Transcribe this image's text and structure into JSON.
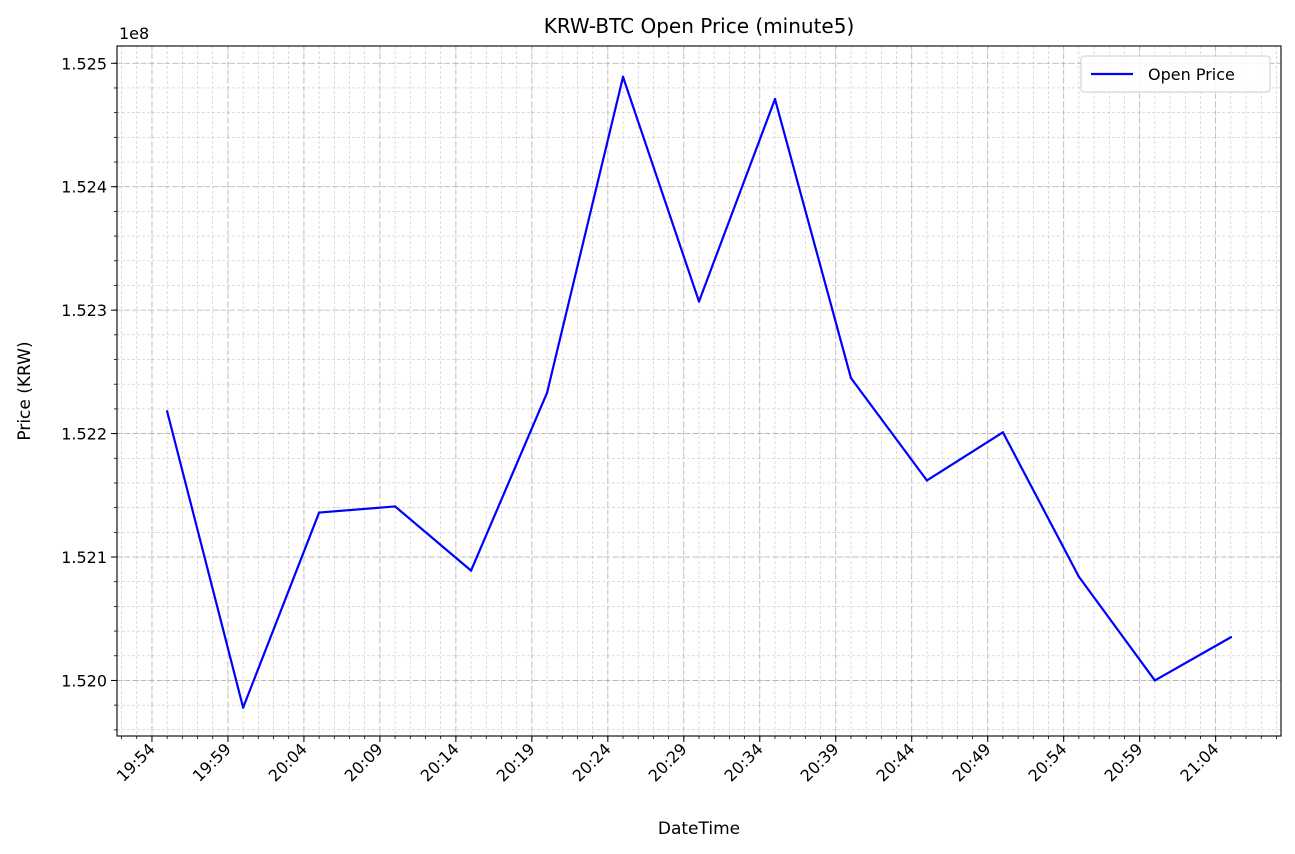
{
  "chart_data": {
    "type": "line",
    "title": "KRW-BTC Open Price (minute5)",
    "xlabel": "DateTime",
    "ylabel": "Price (KRW)",
    "y_offset_label": "1e8",
    "x": [
      "19:55",
      "20:00",
      "20:05",
      "20:10",
      "20:15",
      "20:20",
      "20:25",
      "20:30",
      "20:35",
      "20:40",
      "20:45",
      "20:50",
      "20:55",
      "21:00",
      "21:05"
    ],
    "x_minutes": [
      1195,
      1200,
      1205,
      1210,
      1215,
      1220,
      1225,
      1230,
      1235,
      1240,
      1245,
      1250,
      1255,
      1260,
      1265
    ],
    "xlim_minutes": [
      1191.7,
      1268.3
    ],
    "x_ticks": [
      {
        "minutes": 1194,
        "label": "19:54"
      },
      {
        "minutes": 1199,
        "label": "19:59"
      },
      {
        "minutes": 1204,
        "label": "20:04"
      },
      {
        "minutes": 1209,
        "label": "20:09"
      },
      {
        "minutes": 1214,
        "label": "20:14"
      },
      {
        "minutes": 1219,
        "label": "20:19"
      },
      {
        "minutes": 1224,
        "label": "20:24"
      },
      {
        "minutes": 1229,
        "label": "20:29"
      },
      {
        "minutes": 1234,
        "label": "20:34"
      },
      {
        "minutes": 1239,
        "label": "20:39"
      },
      {
        "minutes": 1244,
        "label": "20:44"
      },
      {
        "minutes": 1249,
        "label": "20:49"
      },
      {
        "minutes": 1254,
        "label": "20:54"
      },
      {
        "minutes": 1259,
        "label": "20:59"
      },
      {
        "minutes": 1264,
        "label": "21:04"
      }
    ],
    "x_minor_step_minutes": 1,
    "ylim": [
      1.51955,
      1.52514
    ],
    "y_ticks": [
      {
        "value": 1.52,
        "label": "1.520"
      },
      {
        "value": 1.521,
        "label": "1.521"
      },
      {
        "value": 1.522,
        "label": "1.522"
      },
      {
        "value": 1.523,
        "label": "1.523"
      },
      {
        "value": 1.524,
        "label": "1.524"
      },
      {
        "value": 1.525,
        "label": "1.525"
      }
    ],
    "y_minor_step": 0.0002,
    "grid": true,
    "legend_position": "top-right",
    "series": [
      {
        "name": "Open Price",
        "color": "#0000ff",
        "values": [
          1.52218,
          1.51978,
          1.52136,
          1.52141,
          1.52089,
          1.52233,
          1.52489,
          1.52307,
          1.52471,
          1.52245,
          1.52162,
          1.52201,
          1.52084,
          1.52,
          1.52035
        ]
      }
    ]
  }
}
